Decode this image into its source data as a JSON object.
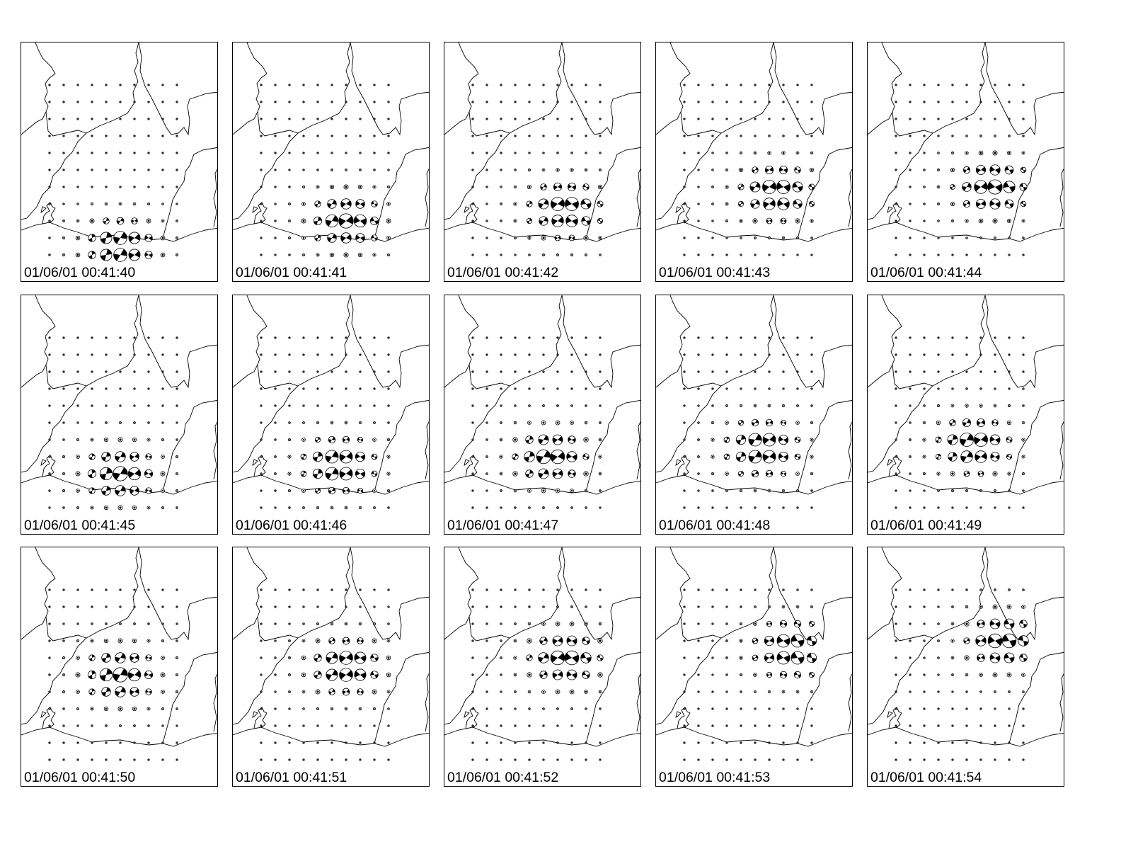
{
  "figure": {
    "panels": [
      {
        "timestamp": "01/06/01 00:41:40",
        "center_col": 5,
        "center_row": 9.5
      },
      {
        "timestamp": "01/06/01 00:41:41",
        "center_col": 6,
        "center_row": 8
      },
      {
        "timestamp": "01/06/01 00:41:42",
        "center_col": 6.5,
        "center_row": 7.3
      },
      {
        "timestamp": "01/06/01 00:41:43",
        "center_col": 6.5,
        "center_row": 6.3
      },
      {
        "timestamp": "01/06/01 00:41:44",
        "center_col": 6.8,
        "center_row": 6
      },
      {
        "timestamp": "01/06/01 00:41:45",
        "center_col": 5,
        "center_row": 8
      },
      {
        "timestamp": "01/06/01 00:41:46",
        "center_col": 5.5,
        "center_row": 7.5
      },
      {
        "timestamp": "01/06/01 00:41:47",
        "center_col": 5.5,
        "center_row": 7
      },
      {
        "timestamp": "01/06/01 00:41:48",
        "center_col": 5.5,
        "center_row": 6.5
      },
      {
        "timestamp": "01/06/01 00:41:49",
        "center_col": 5.5,
        "center_row": 6.3
      },
      {
        "timestamp": "01/06/01 00:41:50",
        "center_col": 5,
        "center_row": 5
      },
      {
        "timestamp": "01/06/01 00:41:51",
        "center_col": 6,
        "center_row": 4.5
      },
      {
        "timestamp": "01/06/01 00:41:52",
        "center_col": 6.5,
        "center_row": 4
      },
      {
        "timestamp": "01/06/01 00:41:53",
        "center_col": 7.5,
        "center_row": 3.5
      },
      {
        "timestamp": "01/06/01 00:41:54",
        "center_col": 7.5,
        "center_row": 3
      }
    ],
    "colors": {
      "ink": "#000000",
      "background": "#ffffff"
    }
  }
}
